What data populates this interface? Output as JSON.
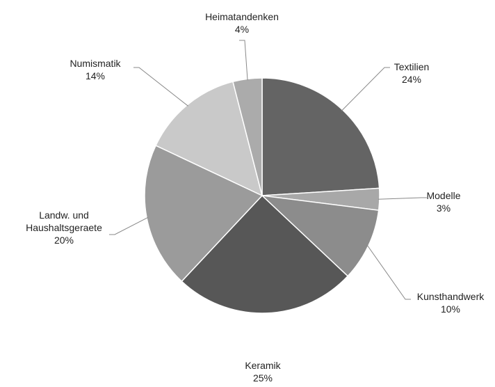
{
  "chart_data": {
    "type": "pie",
    "categories": [
      "Textilien",
      "Modelle",
      "Kunsthandwerk",
      "Keramik",
      "Landw. und Haushaltsgeraete",
      "Numismatik",
      "Heimatandenken"
    ],
    "values": [
      24,
      3,
      10,
      25,
      20,
      14,
      4
    ],
    "value_labels": [
      "24%",
      "3%",
      "10%",
      "25%",
      "20%",
      "14%",
      "4%"
    ],
    "colors": [
      "#646464",
      "#a8a8a8",
      "#8c8c8c",
      "#575757",
      "#9b9b9b",
      "#c9c9c9",
      "#ababab"
    ]
  }
}
